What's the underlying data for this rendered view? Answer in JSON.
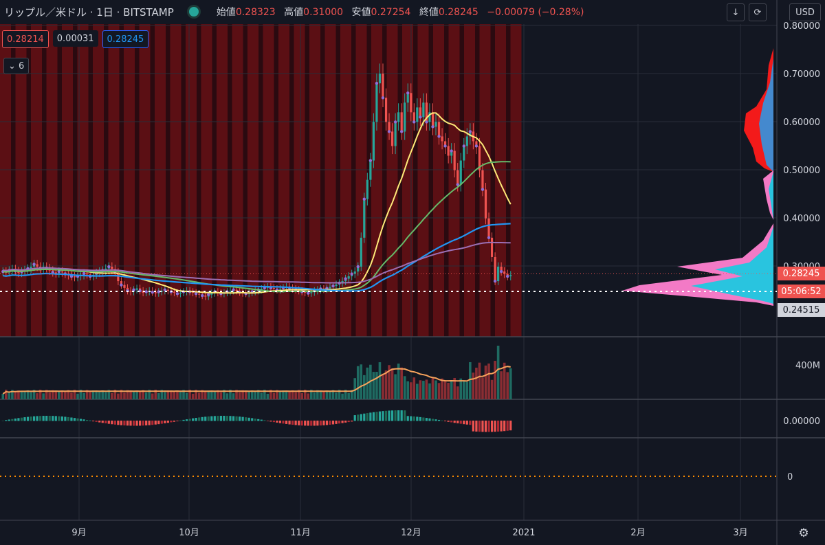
{
  "header": {
    "symbol": "リップル／米ドル · 1日 · BITSTAMP",
    "ohlc": [
      {
        "key": "始値",
        "value": "0.28323"
      },
      {
        "key": "高値",
        "value": "0.31000"
      },
      {
        "key": "安値",
        "value": "0.27254"
      },
      {
        "key": "終値",
        "value": "0.28245"
      }
    ],
    "change": "−0.00079 (−0.28%)",
    "currency_button": "USD"
  },
  "order_panel": {
    "sell_price": "0.28214",
    "spread": "0.00031",
    "buy_price": "0.28245"
  },
  "indicators_collapse": {
    "count": "6"
  },
  "price_axis": {
    "ticks": [
      "0.80000",
      "0.70000",
      "0.60000",
      "0.50000",
      "0.40000",
      "0.30000"
    ],
    "current_price": "0.28245",
    "countdown": "05:06:52",
    "crosshair_price": "0.24515"
  },
  "volume_axis": {
    "tick": "400M"
  },
  "macd_axis": {
    "tick": "0.00000"
  },
  "rsi_axis": {
    "tick": "0"
  },
  "time_axis": {
    "labels": [
      "9月",
      "10月",
      "11月",
      "12月",
      "2021",
      "2月",
      "3月"
    ]
  },
  "colors": {
    "up": "#26a69a",
    "down": "#ef5350",
    "background": "#131722",
    "ma_yellow": "#ffeb79",
    "ma_green": "#66bb6a",
    "ma_blue": "#2196f3",
    "ma_purple": "#9c6fb5",
    "volume_ma": "#f7a35c",
    "band": "#5b0f14"
  },
  "chart_data": {
    "type": "candlestick",
    "price_range": [
      0.22,
      0.8
    ],
    "series_close": [
      0.29,
      0.288,
      0.292,
      0.295,
      0.291,
      0.287,
      0.29,
      0.293,
      0.296,
      0.3,
      0.305,
      0.3,
      0.296,
      0.3,
      0.297,
      0.292,
      0.288,
      0.286,
      0.29,
      0.288,
      0.285,
      0.282,
      0.28,
      0.278,
      0.28,
      0.282,
      0.286,
      0.284,
      0.28,
      0.283,
      0.287,
      0.29,
      0.292,
      0.296,
      0.3,
      0.295,
      0.288,
      0.27,
      0.262,
      0.256,
      0.25,
      0.248,
      0.252,
      0.255,
      0.25,
      0.246,
      0.248,
      0.25,
      0.247,
      0.245,
      0.248,
      0.25,
      0.252,
      0.25,
      0.248,
      0.246,
      0.244,
      0.246,
      0.248,
      0.25,
      0.248,
      0.246,
      0.244,
      0.242,
      0.24,
      0.238,
      0.242,
      0.245,
      0.248,
      0.246,
      0.244,
      0.246,
      0.248,
      0.25,
      0.252,
      0.25,
      0.247,
      0.245,
      0.244,
      0.246,
      0.248,
      0.25,
      0.252,
      0.254,
      0.256,
      0.258,
      0.256,
      0.254,
      0.252,
      0.254,
      0.256,
      0.258,
      0.256,
      0.254,
      0.252,
      0.25,
      0.248,
      0.246,
      0.245,
      0.247,
      0.25,
      0.252,
      0.254,
      0.253,
      0.255,
      0.258,
      0.26,
      0.263,
      0.266,
      0.27,
      0.275,
      0.28,
      0.285,
      0.29,
      0.3,
      0.36,
      0.44,
      0.48,
      0.52,
      0.6,
      0.68,
      0.7,
      0.65,
      0.6,
      0.58,
      0.55,
      0.6,
      0.62,
      0.58,
      0.64,
      0.66,
      0.62,
      0.6,
      0.63,
      0.61,
      0.64,
      0.6,
      0.62,
      0.59,
      0.6,
      0.57,
      0.56,
      0.55,
      0.53,
      0.54,
      0.5,
      0.47,
      0.52,
      0.55,
      0.57,
      0.58,
      0.56,
      0.55,
      0.5,
      0.46,
      0.4,
      0.36,
      0.32,
      0.27,
      0.3,
      0.29,
      0.285,
      0.28,
      0.2825
    ],
    "moving_averages": [
      "yellow",
      "green",
      "blue",
      "purple"
    ],
    "volume_unit": "M"
  }
}
